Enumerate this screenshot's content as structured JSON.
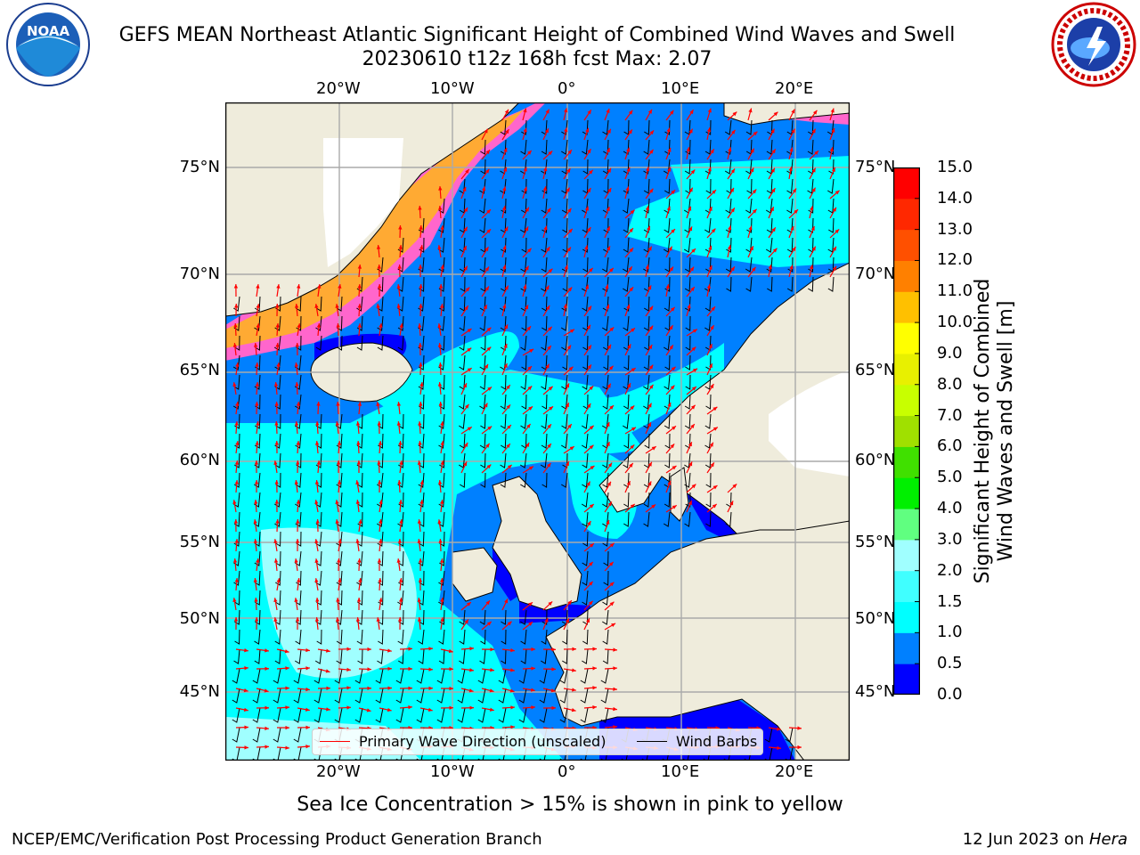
{
  "title_line1": "GEFS MEAN Northeast Atlantic Significant Height of Combined Wind Waves and Swell",
  "title_line2": "20230610 t12z 168h fcst   Max: 2.07",
  "map": {
    "lon_labels": [
      "20°W",
      "10°W",
      "0°",
      "10°E",
      "20°E"
    ],
    "lat_labels": [
      "75°N",
      "70°N",
      "65°N",
      "60°N",
      "55°N",
      "50°N",
      "45°N"
    ],
    "land_color": "#efecdc",
    "ocean_colors": {
      "dark_blue": "#0000ff",
      "blue": "#0080ff",
      "cyan": "#00ffff",
      "light_cyan": "#a0ffff"
    },
    "ice_colors": [
      "#ff66cc",
      "#ff99ff",
      "#ffcc66",
      "#ffaa33"
    ],
    "arrow_color": "#ff0000",
    "barb_color": "#000000"
  },
  "colorbar": {
    "title_line1": "Significant Height of Combined",
    "title_line2": "Wind Waves and Swell [m]",
    "ticks": [
      "0.0",
      "0.5",
      "1.0",
      "1.5",
      "2.0",
      "3.0",
      "4.0",
      "5.0",
      "6.0",
      "7.0",
      "8.0",
      "9.0",
      "10.0",
      "11.0",
      "12.0",
      "13.0",
      "14.0",
      "15.0"
    ],
    "colors": [
      "#0000ff",
      "#0080ff",
      "#00ffff",
      "#40ffff",
      "#a0ffff",
      "#60ff80",
      "#00f000",
      "#40e000",
      "#a0e000",
      "#c8ff00",
      "#e8f000",
      "#ffff00",
      "#ffc000",
      "#ff8000",
      "#ff5000",
      "#ff2800",
      "#ff0000"
    ]
  },
  "legend": {
    "wave_label": "Primary Wave Direction (unscaled)",
    "barb_label": "Wind Barbs"
  },
  "ice_note": "Sea Ice Concentration > 15% is shown in pink to yellow",
  "footer_left": "NCEP/EMC/Verification Post Processing Product Generation Branch",
  "footer_right_prefix": "12 Jun 2023 on ",
  "footer_right_host": "Hera",
  "logos": {
    "left": "noaa-logo",
    "right": "nws-logo"
  }
}
